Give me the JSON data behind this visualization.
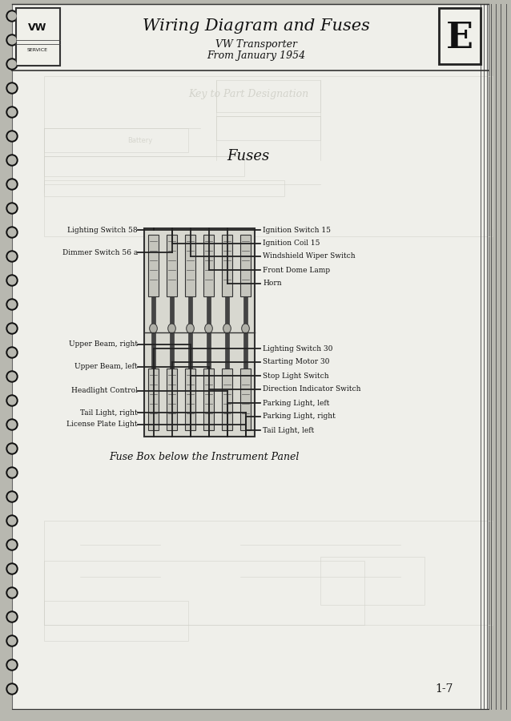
{
  "title": "Wiring Diagram and Fuses",
  "subtitle1": "VW Transporter",
  "subtitle2": "From January 1954",
  "section_title": "Fuses",
  "page_num": "1-7",
  "tab_letter": "E",
  "caption": "Fuse Box below the Instrument Panel",
  "bg_color": "#b8b8b0",
  "page_color": "#efefea",
  "text_color": "#111111",
  "wire_color": "#222222",
  "faint_color": "#c8c8c0"
}
